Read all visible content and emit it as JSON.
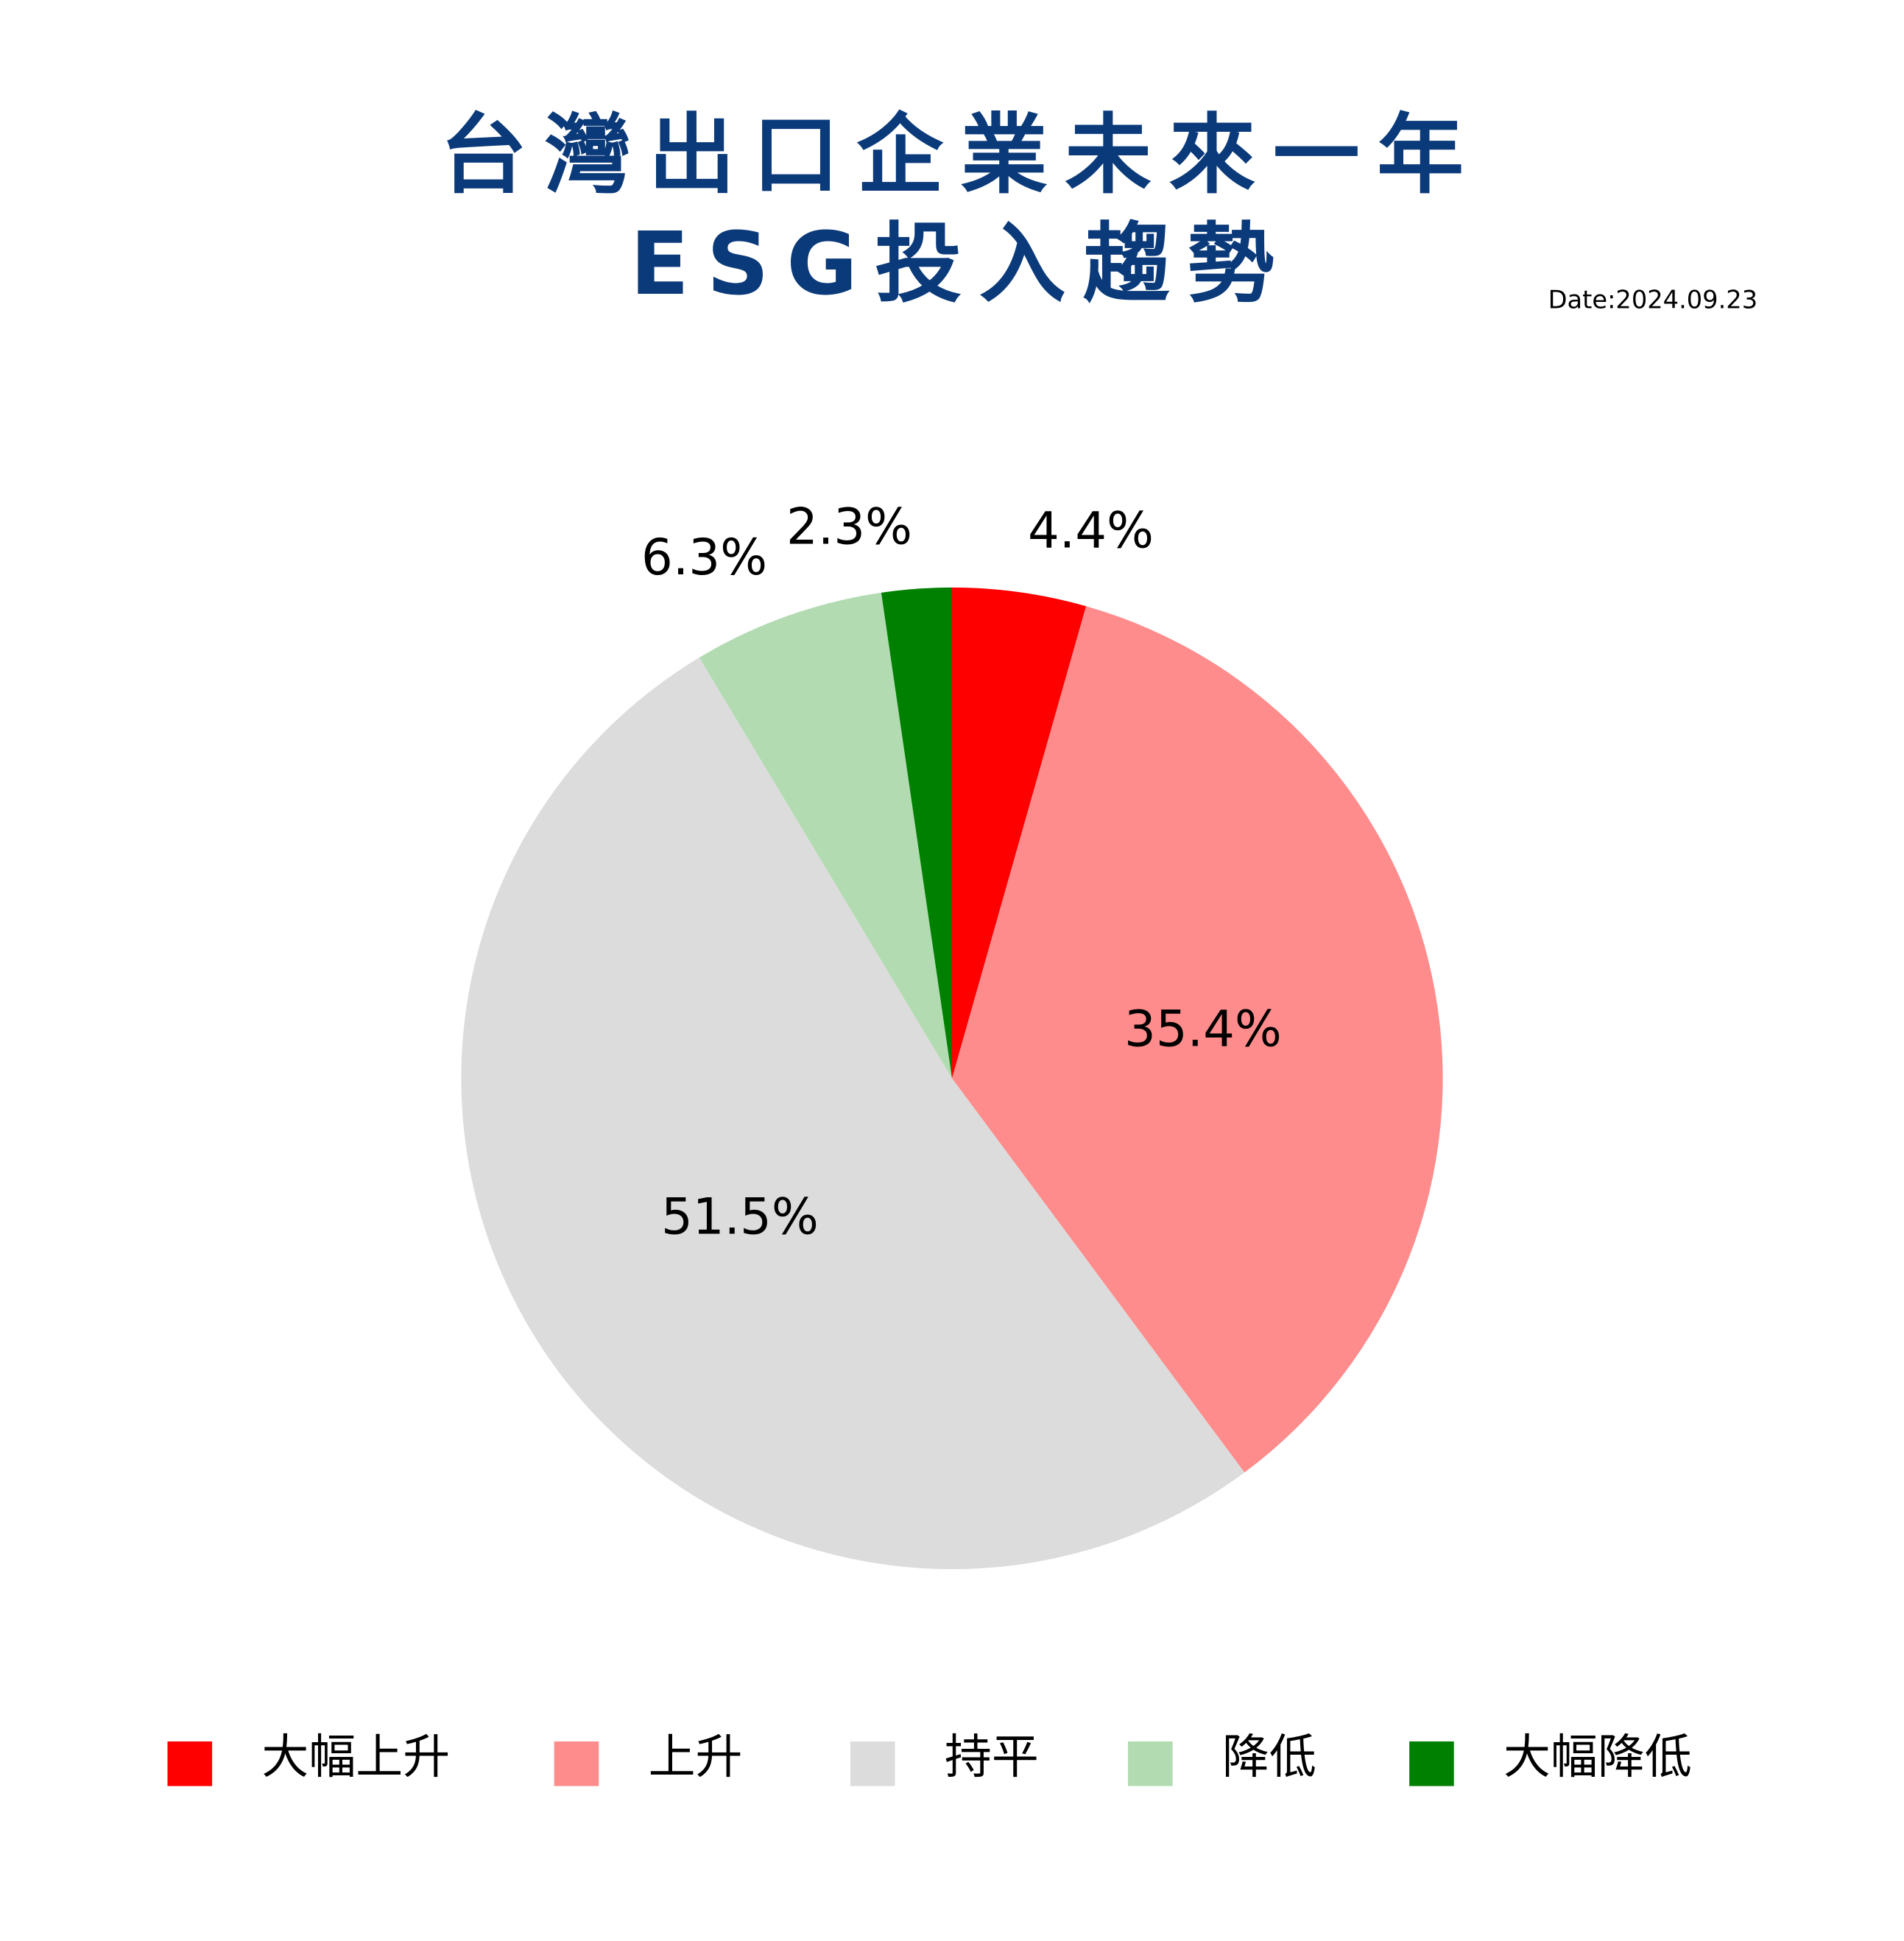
{
  "chart_data": {
    "type": "pie",
    "title": [
      "台灣出口企業未來一年",
      "ESG投入趨勢"
    ],
    "date": "Date:2024.09.23",
    "categories": [
      "大幅上升",
      "上升",
      "持平",
      "降低",
      "大幅降低"
    ],
    "values": [
      4.4,
      35.4,
      51.5,
      6.3,
      2.3
    ],
    "value_labels": [
      "4.4%",
      "35.4%",
      "51.5%",
      "6.3%",
      "2.3%"
    ],
    "colors": [
      "#ff0000",
      "#ff8c8c",
      "#dcdcdc",
      "#b2dbb2",
      "#008000"
    ],
    "legend": "bottom"
  }
}
